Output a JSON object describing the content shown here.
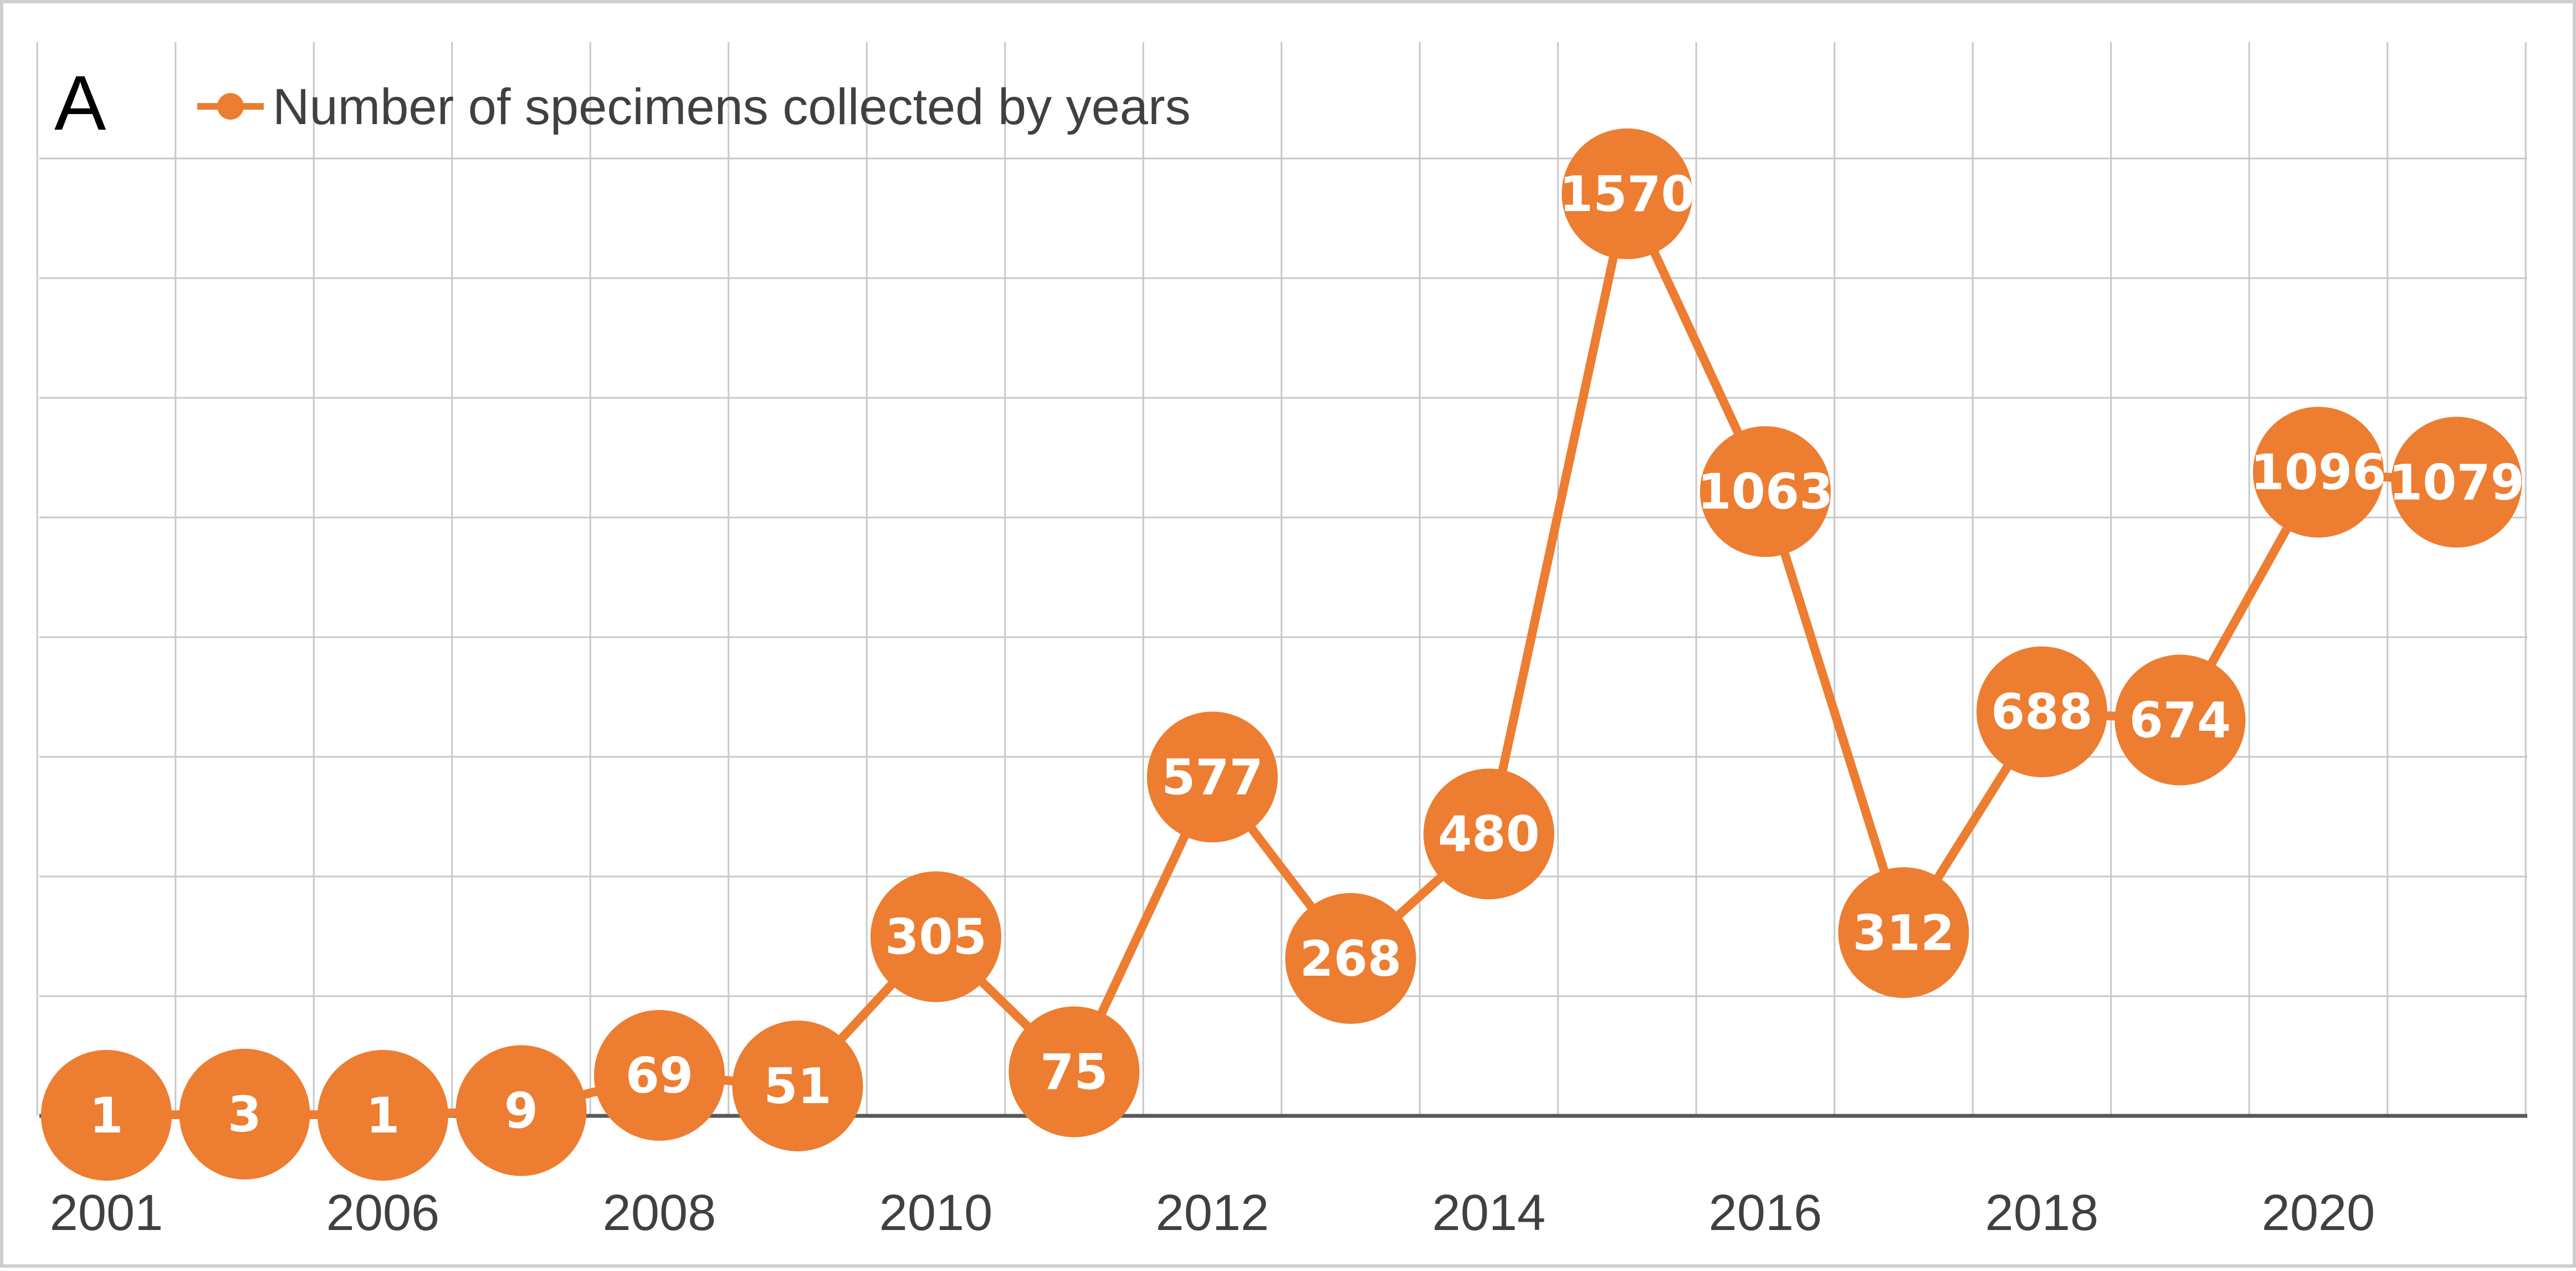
{
  "panel_label": "A",
  "colors": {
    "series": "#ED7D31",
    "grid": "#C8C8C8",
    "axis": "#595959",
    "text": "#404040",
    "label": "#FFFFFF"
  },
  "chart_data": {
    "type": "line",
    "title": "",
    "xlabel": "",
    "ylabel": "",
    "grid": true,
    "legend_position": "top-left",
    "x": [
      "2001",
      "",
      "2006",
      "",
      "2008",
      "",
      "2010",
      "",
      "2012",
      "",
      "2014",
      "",
      "2016",
      "",
      "2018",
      "",
      "2020",
      ""
    ],
    "ylim": [
      0,
      1800
    ],
    "series": [
      {
        "name": "Number of specimens collected by years",
        "values": [
          1,
          3,
          1,
          9,
          69,
          51,
          305,
          75,
          577,
          268,
          480,
          1570,
          1063,
          312,
          688,
          674,
          1096,
          1079
        ],
        "marker": "circle",
        "data_labels": true
      }
    ]
  }
}
